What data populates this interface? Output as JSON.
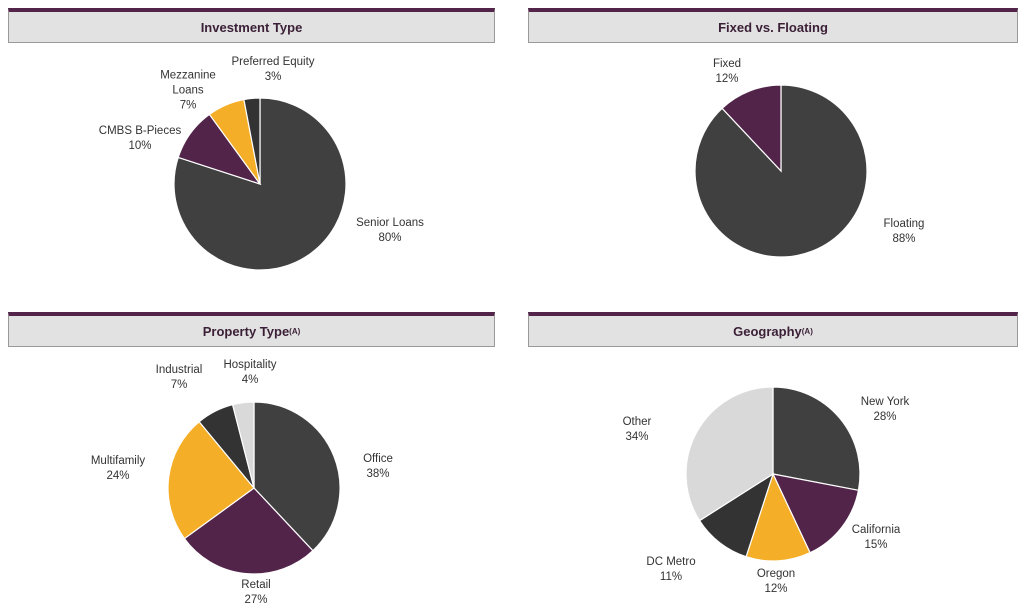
{
  "chart_data": [
    {
      "type": "pie",
      "title": "Investment Type",
      "categories": [
        "Senior Loans",
        "CMBS B-Pieces",
        "Mezzanine Loans",
        "Preferred Equity"
      ],
      "values": [
        80,
        10,
        7,
        3
      ],
      "value_labels": [
        "80%",
        "10%",
        "7%",
        "3%"
      ],
      "colors": [
        "#404040",
        "#52244a",
        "#f5ae27",
        "#333333"
      ]
    },
    {
      "type": "pie",
      "title": "Fixed vs. Floating",
      "categories": [
        "Floating",
        "Fixed"
      ],
      "values": [
        88,
        12
      ],
      "value_labels": [
        "88%",
        "12%"
      ],
      "colors": [
        "#404040",
        "#52244a"
      ]
    },
    {
      "type": "pie",
      "title": "Property Type",
      "title_note": "(A)",
      "categories": [
        "Office",
        "Retail",
        "Multifamily",
        "Industrial",
        "Hospitality"
      ],
      "values": [
        38,
        27,
        24,
        7,
        4
      ],
      "value_labels": [
        "38%",
        "27%",
        "24%",
        "7%",
        "4%"
      ],
      "colors": [
        "#404040",
        "#52244a",
        "#f5ae27",
        "#333333",
        "#d9d9d9"
      ]
    },
    {
      "type": "pie",
      "title": "Geography",
      "title_note": "(A)",
      "categories": [
        "New York",
        "California",
        "Oregon",
        "DC Metro",
        "Other"
      ],
      "values": [
        28,
        15,
        12,
        11,
        34
      ],
      "value_labels": [
        "28%",
        "15%",
        "12%",
        "11%",
        "34%"
      ],
      "colors": [
        "#404040",
        "#52244a",
        "#f5ae27",
        "#333333",
        "#d9d9d9"
      ]
    }
  ]
}
